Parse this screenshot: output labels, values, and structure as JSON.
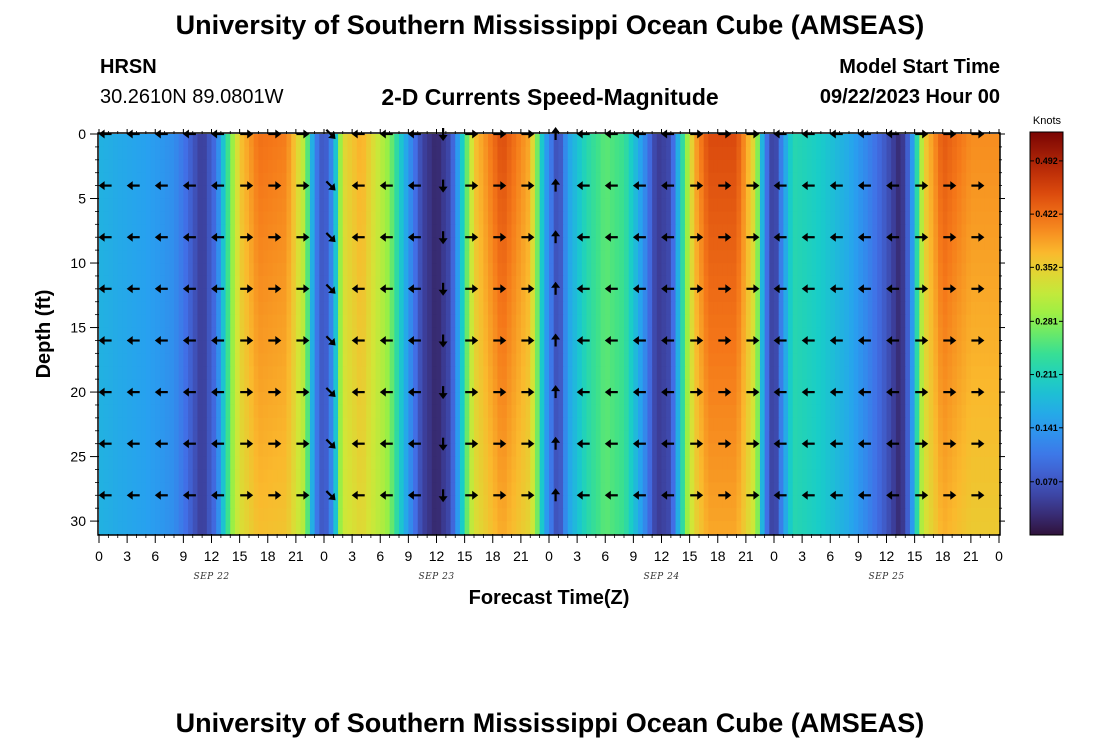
{
  "header": {
    "title": "University of Southern Mississippi Ocean Cube (AMSEAS)",
    "station_id": "HRSN",
    "station_coords": "30.2610N  89.0801W",
    "subtitle": "2-D Currents Speed-Magnitude",
    "model_start_label": "Model Start Time",
    "model_start_value": "09/22/2023 Hour 00"
  },
  "footer": {
    "title": "University of Southern Mississippi Ocean Cube (AMSEAS)"
  },
  "chart_data": {
    "type": "heatmap",
    "title": "2-D Currents Speed-Magnitude",
    "xlabel": "Forecast Time(Z)",
    "ylabel": "Depth (ft)",
    "x_range_hours": [
      0,
      96
    ],
    "y_range_ft": [
      0,
      31
    ],
    "y_reversed": true,
    "x_tick_labels": [
      "0",
      "3",
      "6",
      "9",
      "12",
      "15",
      "18",
      "21",
      "0",
      "3",
      "6",
      "9",
      "12",
      "15",
      "18",
      "21",
      "0",
      "3",
      "6",
      "9",
      "12",
      "15",
      "18",
      "21",
      "0",
      "3",
      "6",
      "9",
      "12",
      "15",
      "18",
      "21",
      "0"
    ],
    "date_labels": [
      {
        "hour": 12,
        "label": "SEP 22"
      },
      {
        "hour": 36,
        "label": "SEP 23"
      },
      {
        "hour": 60,
        "label": "SEP 24"
      },
      {
        "hour": 84,
        "label": "SEP 25"
      }
    ],
    "y_ticks": [
      0,
      5,
      10,
      15,
      20,
      25,
      30
    ],
    "colorbar": {
      "unit": "Knots",
      "min": 0.0,
      "max": 0.53,
      "tick_values": [
        0.07,
        0.141,
        0.211,
        0.281,
        0.352,
        0.422,
        0.492
      ],
      "tick_labels": [
        "0.070",
        "0.141",
        "0.211",
        "0.281",
        "0.352",
        "0.422",
        "0.492"
      ]
    },
    "speed_profile_knots": [
      {
        "hour": 0,
        "speed": 0.17
      },
      {
        "hour": 2,
        "speed": 0.16
      },
      {
        "hour": 5,
        "speed": 0.15
      },
      {
        "hour": 8,
        "speed": 0.13
      },
      {
        "hour": 9.5,
        "speed": 0.09
      },
      {
        "hour": 11,
        "speed": 0.04
      },
      {
        "hour": 12.5,
        "speed": 0.1
      },
      {
        "hour": 13.5,
        "speed": 0.22
      },
      {
        "hour": 15,
        "speed": 0.36
      },
      {
        "hour": 17,
        "speed": 0.42
      },
      {
        "hour": 20,
        "speed": 0.41
      },
      {
        "hour": 22,
        "speed": 0.3
      },
      {
        "hour": 23,
        "speed": 0.12
      },
      {
        "hour": 24,
        "speed": 0.06
      },
      {
        "hour": 25,
        "speed": 0.14
      },
      {
        "hour": 26,
        "speed": 0.34
      },
      {
        "hour": 28,
        "speed": 0.38
      },
      {
        "hour": 31,
        "speed": 0.28
      },
      {
        "hour": 33,
        "speed": 0.14
      },
      {
        "hour": 34.5,
        "speed": 0.05
      },
      {
        "hour": 36,
        "speed": 0.02
      },
      {
        "hour": 37.5,
        "speed": 0.06
      },
      {
        "hour": 38.5,
        "speed": 0.17
      },
      {
        "hour": 40,
        "speed": 0.36
      },
      {
        "hour": 43,
        "speed": 0.45
      },
      {
        "hour": 46,
        "speed": 0.38
      },
      {
        "hour": 47.5,
        "speed": 0.16
      },
      {
        "hour": 49,
        "speed": 0.05
      },
      {
        "hour": 50,
        "speed": 0.15
      },
      {
        "hour": 52,
        "speed": 0.22
      },
      {
        "hour": 54,
        "speed": 0.26
      },
      {
        "hour": 56,
        "speed": 0.24
      },
      {
        "hour": 58,
        "speed": 0.14
      },
      {
        "hour": 59.5,
        "speed": 0.04
      },
      {
        "hour": 61,
        "speed": 0.06
      },
      {
        "hour": 62,
        "speed": 0.2
      },
      {
        "hour": 63.5,
        "speed": 0.38
      },
      {
        "hour": 65,
        "speed": 0.45
      },
      {
        "hour": 68,
        "speed": 0.45
      },
      {
        "hour": 70,
        "speed": 0.33
      },
      {
        "hour": 71,
        "speed": 0.12
      },
      {
        "hour": 72,
        "speed": 0.03
      },
      {
        "hour": 73,
        "speed": 0.14
      },
      {
        "hour": 74,
        "speed": 0.22
      },
      {
        "hour": 77,
        "speed": 0.2
      },
      {
        "hour": 80,
        "speed": 0.16
      },
      {
        "hour": 82,
        "speed": 0.12
      },
      {
        "hour": 84,
        "speed": 0.07
      },
      {
        "hour": 85.5,
        "speed": 0.02
      },
      {
        "hour": 86.5,
        "speed": 0.1
      },
      {
        "hour": 88,
        "speed": 0.35
      },
      {
        "hour": 90,
        "speed": 0.44
      },
      {
        "hour": 93,
        "speed": 0.4
      },
      {
        "hour": 96,
        "speed": 0.4
      }
    ],
    "vector_depths_ft": [
      0,
      4,
      8,
      12,
      16,
      20,
      24,
      28
    ],
    "vector_hours": [
      0,
      3,
      6,
      9,
      12,
      15,
      18,
      21,
      24,
      27,
      30,
      33,
      36,
      39,
      42,
      45,
      48,
      51,
      54,
      57,
      60,
      63,
      66,
      69,
      72,
      75,
      78,
      81,
      84,
      87,
      90,
      93
    ],
    "vector_direction_by_hour": [
      "W",
      "W",
      "W",
      "W",
      "W",
      "E",
      "E",
      "E",
      "SE",
      "W",
      "W",
      "W",
      "S",
      "E",
      "E",
      "E",
      "N",
      "W",
      "W",
      "W",
      "W",
      "E",
      "E",
      "E",
      "W",
      "W",
      "W",
      "W",
      "W",
      "E",
      "E",
      "E"
    ]
  }
}
